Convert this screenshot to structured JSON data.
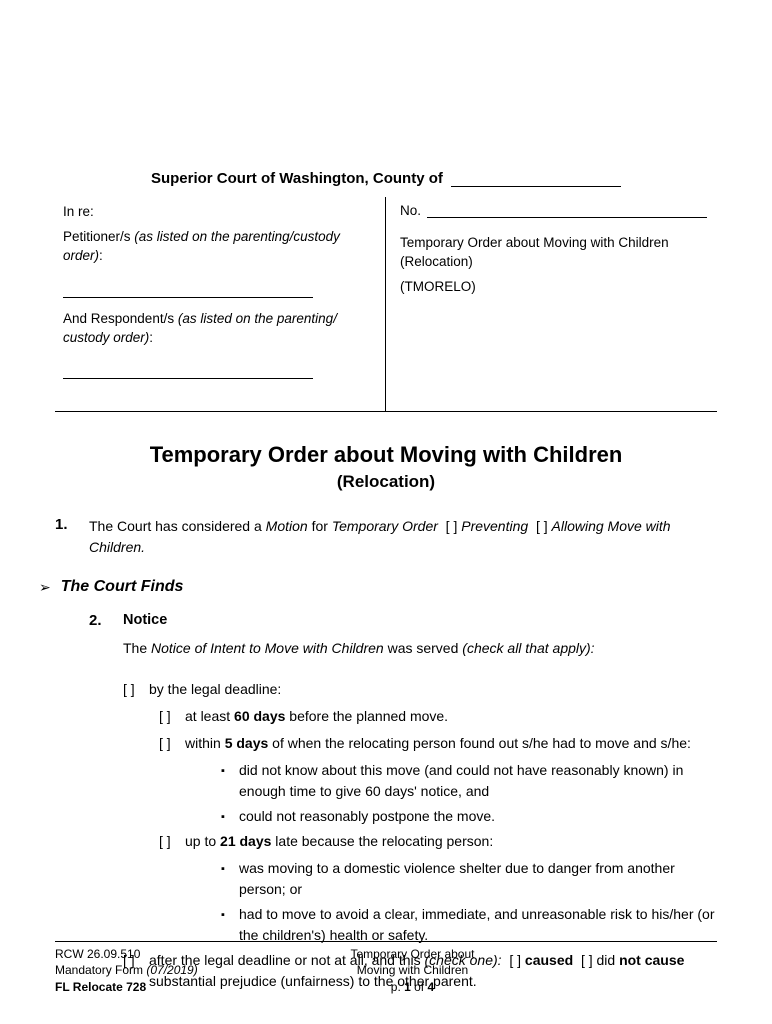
{
  "header": {
    "court_line": "Superior Court of Washington, County of"
  },
  "caption": {
    "in_re": "In re:",
    "petitioner_label": "Petitioner/s ",
    "petitioner_note": "(as listed on the parenting/custody order)",
    "respondent_label": "And Respondent/s ",
    "respondent_note": "(as listed on the parenting/ custody order)",
    "no_label": "No.",
    "desc1": "Temporary Order about Moving with Children (Relocation)",
    "code": "(TMORELO)"
  },
  "title": {
    "main": "Temporary Order about Moving with Children",
    "sub": "(Relocation)"
  },
  "item1": {
    "num": "1.",
    "pre": "The Court has considered a ",
    "motion": "Motion",
    "for": " for ",
    "temp": "Temporary Order",
    "prev": "Preventing",
    "allow": "Allowing",
    "post": "Move with Children."
  },
  "finds": {
    "arrow": "➢",
    "label": "The Court Finds"
  },
  "item2": {
    "num": "2.",
    "heading": "Notice",
    "intro_pre": "The ",
    "intro_em": "Notice of Intent to Move with Children",
    "intro_mid": " was served ",
    "intro_paren": "(check all that apply):",
    "c1": "by the legal deadline:",
    "c1a_pre": "at least ",
    "c1a_bold": "60 days",
    "c1a_post": " before the planned move.",
    "c1b_pre": "within ",
    "c1b_bold": "5 days",
    "c1b_post": " of when the relocating person found out s/he had to move and s/he:",
    "c1b_b1": "did not know about this move (and could not have reasonably known) in enough time to give 60 days' notice, and",
    "c1b_b2": "could not reasonably postpone the move.",
    "c2_pre": "up to ",
    "c2_bold": "21 days",
    "c2_post": " late because the relocating person:",
    "c2_b1": "was moving to a domestic violence shelter due to danger from another person; or",
    "c2_b2": "had to move to avoid a clear, immediate, and unreasonable risk to his/her (or the children's) health or safety.",
    "c3_pre": "after the legal deadline or not at all, and this ",
    "c3_paren": "(check one):",
    "c3_caused": "caused",
    "c3_not": "not cause",
    "c3_did": " did ",
    "c3_post": " substantial prejudice (unfairness) to the other parent."
  },
  "footer": {
    "l1": "RCW 26.09.510",
    "l2_pre": "Mandatory Form ",
    "l2_em": "(07/2019)",
    "l3": "FL Relocate 728",
    "c1": "Temporary Order about",
    "c2": "Moving with Children",
    "c3_pre": "p. ",
    "c3_b": "1",
    "c3_post": " of ",
    "c3_b2": "4"
  },
  "checkbox": "[  ]"
}
